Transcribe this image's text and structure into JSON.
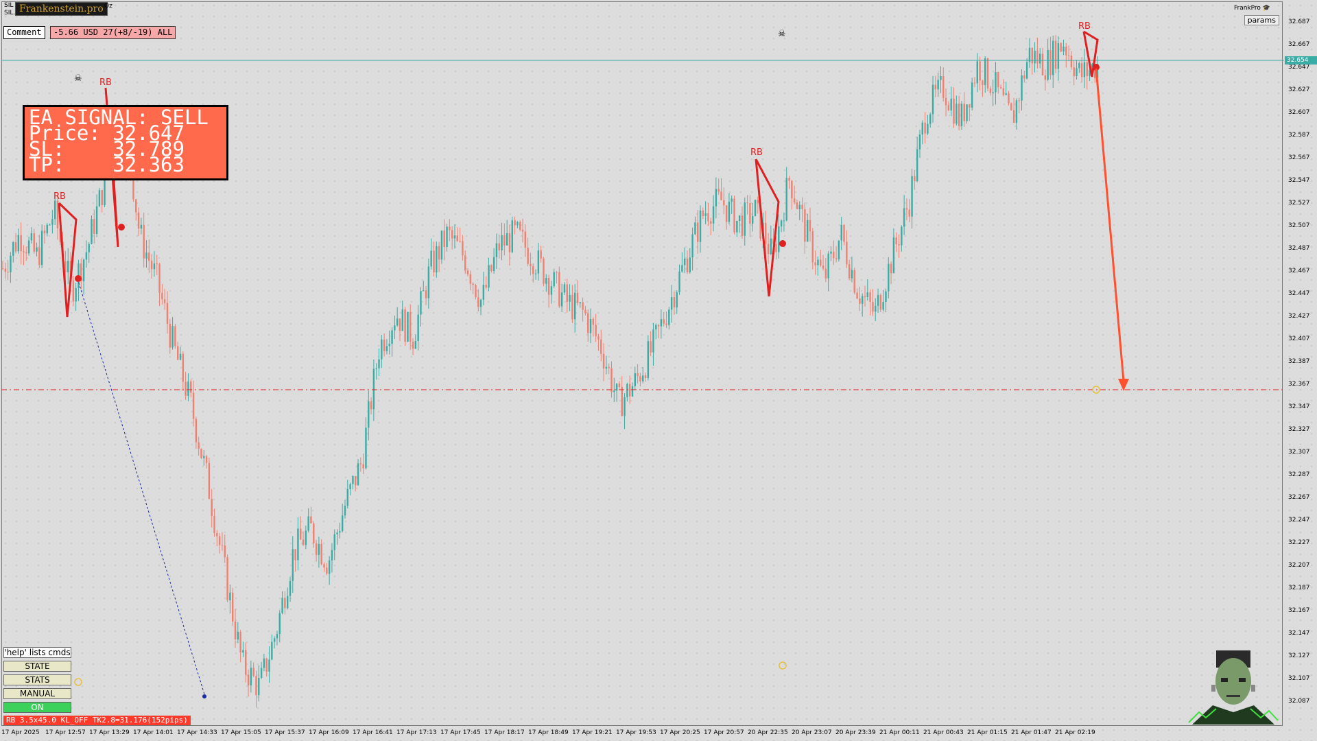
{
  "header": {
    "symbol_line1": "SIL",
    "symbol_line2": "SIL…",
    "brand": "Frankenstein.pro",
    "oz": "Oz",
    "comment_label": "Comment",
    "pnl_text": "-5.66 USD 27(+8/-19) ALL",
    "user": "FrankPro",
    "params_label": "params"
  },
  "signal": {
    "line1": "EA SIGNAL: SELL",
    "line2": "Price: 32.647",
    "line3": "SL:    32.789",
    "line4": "TP:    32.363"
  },
  "commands": {
    "help": "'help' lists cmds",
    "state": "STATE",
    "stats": "STATS",
    "manual": "MANUAL",
    "on": "ON"
  },
  "status_bar": "RB 3.5x45.0 KL_OFF TK2.8=31.176(152pips)",
  "pattern_label": "RB",
  "current_price": "32.654",
  "price_axis": [
    "32.687",
    "32.667",
    "32.647",
    "32.627",
    "32.607",
    "32.587",
    "32.567",
    "32.547",
    "32.527",
    "32.507",
    "32.487",
    "32.467",
    "32.447",
    "32.427",
    "32.407",
    "32.387",
    "32.367",
    "32.347",
    "32.327",
    "32.307",
    "32.287",
    "32.267",
    "32.247",
    "32.227",
    "32.207",
    "32.187",
    "32.167",
    "32.147",
    "32.127",
    "32.107",
    "32.087"
  ],
  "time_axis": [
    "17 Apr 2025",
    "17 Apr 12:57",
    "17 Apr 13:29",
    "17 Apr 14:01",
    "17 Apr 14:33",
    "17 Apr 15:05",
    "17 Apr 15:37",
    "17 Apr 16:09",
    "17 Apr 16:41",
    "17 Apr 17:13",
    "17 Apr 17:45",
    "17 Apr 18:17",
    "17 Apr 18:49",
    "17 Apr 19:21",
    "17 Apr 19:53",
    "17 Apr 20:25",
    "17 Apr 20:57",
    "20 Apr 22:35",
    "20 Apr 23:07",
    "20 Apr 23:39",
    "21 Apr 00:11",
    "21 Apr 00:43",
    "21 Apr 01:15",
    "21 Apr 01:47",
    "21 Apr 02:19"
  ],
  "price_trend": [
    32.47,
    32.5,
    32.48,
    32.52,
    32.45,
    32.49,
    32.55,
    32.62,
    32.5,
    32.46,
    32.4,
    32.35,
    32.28,
    32.2,
    32.12,
    32.1,
    32.15,
    32.22,
    32.24,
    32.21,
    32.26,
    32.3,
    32.4,
    32.43,
    32.41,
    32.47,
    32.5,
    32.48,
    32.44,
    32.49,
    32.5,
    32.48,
    32.46,
    32.44,
    32.43,
    32.4,
    32.35,
    32.37,
    32.4,
    32.44,
    32.48,
    32.52,
    32.53,
    32.51,
    32.52,
    32.48,
    32.55,
    32.5,
    32.46,
    32.5,
    32.45,
    32.43,
    32.48,
    32.53,
    32.61,
    32.63,
    32.6,
    32.65,
    32.63,
    32.6,
    32.66,
    32.65,
    32.67,
    32.64,
    32.65
  ],
  "colors": {
    "bull": "#3aaca6",
    "bear": "#f08070",
    "signal_bg": "#ff6a4c",
    "sl_line": "#e02020",
    "current_line": "#3aaca6"
  }
}
